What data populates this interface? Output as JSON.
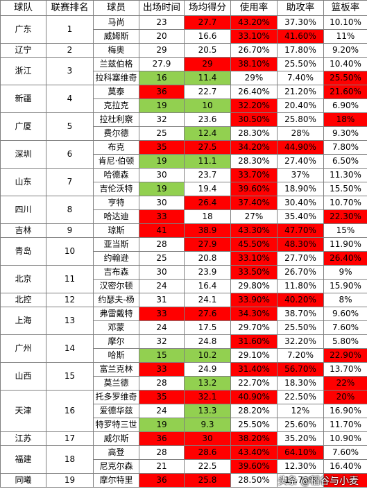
{
  "headers": [
    "球队",
    "联赛排名",
    "球员",
    "出场时间",
    "场均得分",
    "使用率",
    "助攻率",
    "篮板率"
  ],
  "colors": {
    "red": "#ff0000",
    "green": "#92d050"
  },
  "rows": [
    {
      "team": "广东",
      "rank": "1",
      "span": 2,
      "player": "马尚",
      "min": "23",
      "pts": "27.7",
      "usg": "43.20%",
      "ast": "37.30%",
      "reb": "10.10%",
      "hl": {
        "pts": "red",
        "usg": "red"
      }
    },
    {
      "player": "威姆斯",
      "min": "20",
      "pts": "16.6",
      "usg": "33.10%",
      "ast": "41.60%",
      "reb": "11%",
      "hl": {
        "usg": "red",
        "ast": "red"
      }
    },
    {
      "team": "辽宁",
      "rank": "2",
      "span": 1,
      "player": "梅奥",
      "min": "29",
      "pts": "20.5",
      "usg": "26.70%",
      "ast": "17.80%",
      "reb": "9.20%",
      "hl": {}
    },
    {
      "team": "浙江",
      "rank": "3",
      "span": 2,
      "player": "兰兹伯格",
      "min": "27.9",
      "pts": "29",
      "usg": "38.10%",
      "ast": "25.50%",
      "reb": "10.40%",
      "hl": {
        "pts": "red",
        "usg": "red"
      }
    },
    {
      "player": "拉科塞维奇",
      "min": "16",
      "pts": "11.4",
      "usg": "29%",
      "ast": "7.40%",
      "reb": "25.50%",
      "hl": {
        "min": "green",
        "pts": "green",
        "reb": "red"
      }
    },
    {
      "team": "新疆",
      "rank": "4",
      "span": 2,
      "player": "莫泰",
      "min": "36",
      "pts": "22.7",
      "usg": "26.40%",
      "ast": "21.20%",
      "reb": "21.60%",
      "hl": {
        "min": "red",
        "reb": "red"
      }
    },
    {
      "player": "克拉克",
      "min": "19",
      "pts": "10",
      "usg": "32.20%",
      "ast": "20.40%",
      "reb": "6.90%",
      "hl": {
        "min": "green",
        "pts": "green",
        "usg": "red"
      }
    },
    {
      "team": "广厦",
      "rank": "5",
      "span": 2,
      "player": "拉杜利察",
      "min": "32",
      "pts": "23.6",
      "usg": "30.50%",
      "ast": "25.80%",
      "reb": "18%",
      "hl": {
        "usg": "red",
        "reb": "red"
      }
    },
    {
      "player": "费尔德",
      "min": "25",
      "pts": "12.4",
      "usg": "28.30%",
      "ast": "28%",
      "reb": "9.30%",
      "hl": {
        "pts": "green"
      }
    },
    {
      "team": "深圳",
      "rank": "6",
      "span": 2,
      "player": "布克",
      "min": "35",
      "pts": "27.5",
      "usg": "34.20%",
      "ast": "44.90%",
      "reb": "7.80%",
      "hl": {
        "min": "red",
        "pts": "red",
        "usg": "red",
        "ast": "red"
      }
    },
    {
      "player": "肯尼·伯顿",
      "min": "19",
      "pts": "11.1",
      "usg": "28.30%",
      "ast": "27.40%",
      "reb": "6.50%",
      "hl": {
        "min": "green",
        "pts": "green"
      }
    },
    {
      "team": "山东",
      "rank": "7",
      "span": 2,
      "player": "哈德森",
      "min": "30",
      "pts": "23.7",
      "usg": "33.70%",
      "ast": "37%",
      "reb": "11.30%",
      "hl": {
        "usg": "red"
      }
    },
    {
      "player": "吉伦沃特",
      "min": "19",
      "pts": "19.4",
      "usg": "39.60%",
      "ast": "18.90%",
      "reb": "15.50%",
      "hl": {
        "min": "green",
        "usg": "red"
      }
    },
    {
      "team": "四川",
      "rank": "8",
      "span": 2,
      "player": "亨特",
      "min": "30",
      "pts": "26.4",
      "usg": "37.40%",
      "ast": "30.40%",
      "reb": "10.70%",
      "hl": {
        "pts": "red",
        "usg": "red"
      }
    },
    {
      "player": "哈达迪",
      "min": "33",
      "pts": "18",
      "usg": "27%",
      "ast": "35.40%",
      "reb": "22.30%",
      "hl": {
        "min": "red",
        "reb": "red"
      }
    },
    {
      "team": "吉林",
      "rank": "9",
      "span": 1,
      "player": "琼斯",
      "min": "41",
      "pts": "38.9",
      "usg": "43.30%",
      "ast": "47.70%",
      "reb": "15%",
      "hl": {
        "min": "red",
        "pts": "red",
        "usg": "red",
        "ast": "red"
      }
    },
    {
      "team": "青岛",
      "rank": "10",
      "span": 2,
      "player": "亚当斯",
      "min": "28",
      "pts": "27.9",
      "usg": "45.50%",
      "ast": "48.30%",
      "reb": "11.90%",
      "hl": {
        "pts": "red",
        "usg": "red",
        "ast": "red"
      }
    },
    {
      "player": "约翰逊",
      "min": "25",
      "pts": "20.8",
      "usg": "33.10%",
      "ast": "27.70%",
      "reb": "26.40%",
      "hl": {
        "usg": "red",
        "reb": "red"
      }
    },
    {
      "team": "北京",
      "rank": "11",
      "span": 2,
      "player": "吉布森",
      "min": "30",
      "pts": "23.9",
      "usg": "33.50%",
      "ast": "26.70%",
      "reb": "9%",
      "hl": {
        "usg": "red"
      }
    },
    {
      "player": "汉密尔顿",
      "min": "24",
      "pts": "16.4",
      "usg": "29.80%",
      "ast": "11.80%",
      "reb": "15.90%",
      "hl": {}
    },
    {
      "team": "北控",
      "rank": "12",
      "span": 1,
      "player": "约瑟夫-杨",
      "min": "31",
      "pts": "24.1",
      "usg": "33.90%",
      "ast": "40.20%",
      "reb": "8%",
      "hl": {
        "usg": "red",
        "ast": "red"
      }
    },
    {
      "team": "上海",
      "rank": "13",
      "span": 2,
      "player": "弗雷戴特",
      "min": "33",
      "pts": "27.6",
      "usg": "34.30%",
      "ast": "38.70%",
      "reb": "9.60%",
      "hl": {
        "min": "red",
        "pts": "red",
        "usg": "red"
      }
    },
    {
      "player": "邓蒙",
      "min": "24",
      "pts": "17.5",
      "usg": "29.70%",
      "ast": "25.50%",
      "reb": "7.60%",
      "hl": {}
    },
    {
      "team": "广州",
      "rank": "14",
      "span": 2,
      "player": "摩尔",
      "min": "32",
      "pts": "24.8",
      "usg": "31.60%",
      "ast": "32.20%",
      "reb": "5.80%",
      "hl": {
        "usg": "red"
      }
    },
    {
      "player": "哈斯",
      "min": "15",
      "pts": "10.2",
      "usg": "29.10%",
      "ast": "7.20%",
      "reb": "22.90%",
      "hl": {
        "min": "green",
        "pts": "green",
        "reb": "red"
      }
    },
    {
      "team": "山西",
      "rank": "15",
      "span": 2,
      "player": "富兰克林",
      "min": "33",
      "pts": "24.9",
      "usg": "31.40%",
      "ast": "56.70%",
      "reb": "13.70%",
      "hl": {
        "min": "red",
        "usg": "red",
        "ast": "red"
      }
    },
    {
      "player": "莫兰德",
      "min": "28",
      "pts": "13.2",
      "usg": "22.70%",
      "ast": "18.30%",
      "reb": "22%",
      "hl": {
        "pts": "green",
        "reb": "red"
      }
    },
    {
      "team": "天津",
      "rank": "16",
      "span": 3,
      "player": "托多罗维奇",
      "min": "35",
      "pts": "32.1",
      "usg": "40.90%",
      "ast": "22.50%",
      "reb": "20%",
      "hl": {
        "min": "red",
        "pts": "red",
        "usg": "red",
        "reb": "red"
      }
    },
    {
      "player": "爱德华兹",
      "min": "24",
      "pts": "13.3",
      "usg": "28.20%",
      "ast": "12%",
      "reb": "16.90%",
      "hl": {
        "pts": "green"
      }
    },
    {
      "player": "特罗特三世",
      "min": "19",
      "pts": "9.3",
      "usg": "25.50%",
      "ast": "25.60%",
      "reb": "11.70%",
      "hl": {
        "min": "green",
        "pts": "green"
      }
    },
    {
      "team": "江苏",
      "rank": "17",
      "span": 1,
      "player": "威尔斯",
      "min": "36",
      "pts": "30",
      "usg": "38.20%",
      "ast": "35.20%",
      "reb": "10.90%",
      "hl": {
        "min": "red",
        "pts": "red",
        "usg": "red"
      }
    },
    {
      "team": "福建",
      "rank": "18",
      "span": 2,
      "player": "高登",
      "min": "28",
      "pts": "28.6",
      "usg": "43.40%",
      "ast": "64.10%",
      "reb": "7.60%",
      "hl": {
        "pts": "red",
        "usg": "red",
        "ast": "red"
      }
    },
    {
      "player": "尼克尔森",
      "min": "21",
      "pts": "22.5",
      "usg": "39.60%",
      "ast": "12.30%",
      "reb": "16.40%",
      "hl": {
        "usg": "red"
      }
    },
    {
      "team": "同曦",
      "rank": "19",
      "span": 1,
      "player": "摩尔特里",
      "min": "36",
      "pts": "25.8",
      "usg": "28.50%",
      "ast": "15.70%",
      "reb": "",
      "hl": {
        "min": "red",
        "pts": "red",
        "reb": "red"
      }
    }
  ],
  "watermark": "头条 @稻谷与小麦"
}
